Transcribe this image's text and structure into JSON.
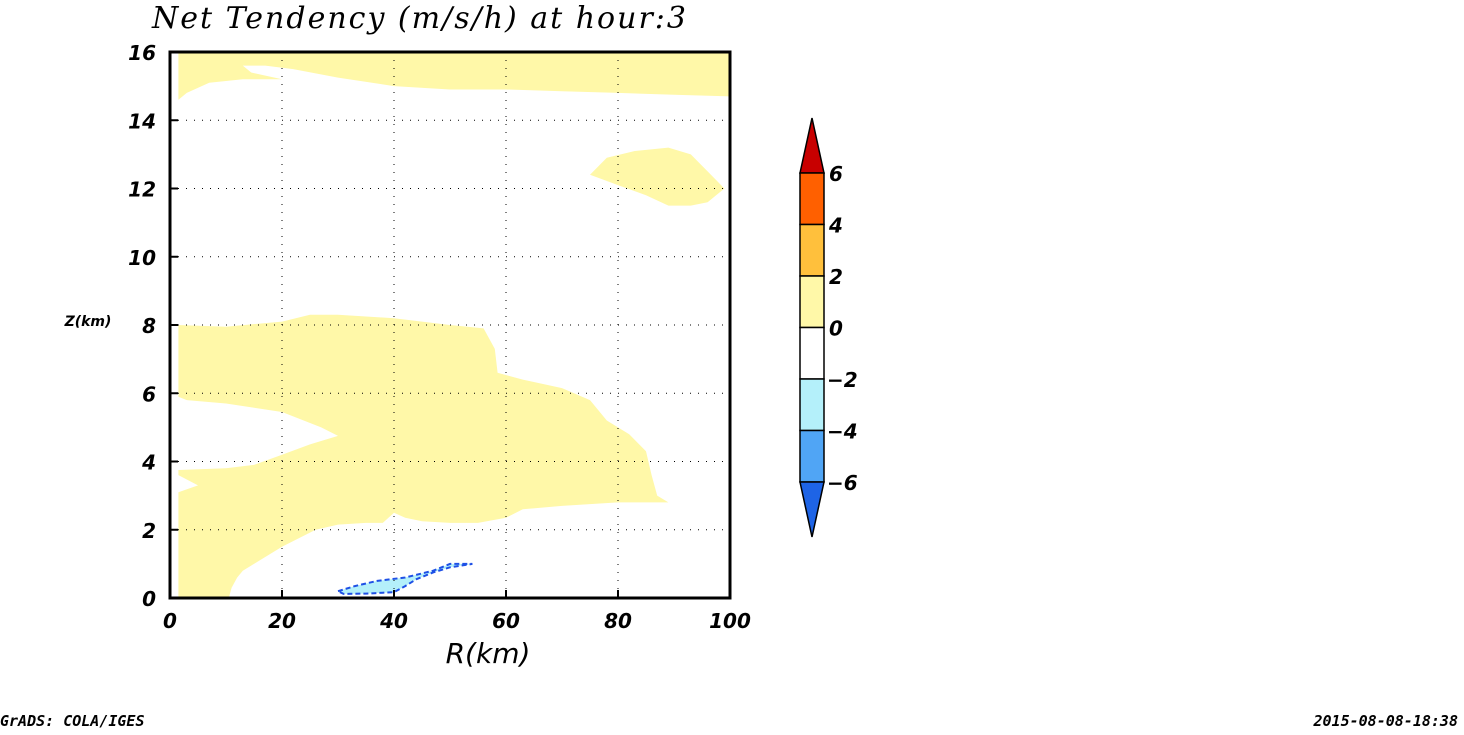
{
  "chart_data": {
    "type": "contour",
    "title": "Net Tendency (m/s/h) at hour:3",
    "xlabel": "R(km)",
    "ylabel": "Z(km)",
    "xlim": [
      0,
      100
    ],
    "ylim": [
      0,
      16
    ],
    "xticks": [
      0,
      20,
      40,
      60,
      80,
      100
    ],
    "yticks": [
      0,
      2,
      4,
      6,
      8,
      10,
      12,
      14,
      16
    ],
    "grid": true,
    "colorbar": {
      "position": "right",
      "levels": [
        -6,
        -4,
        -2,
        0,
        2,
        4,
        6
      ],
      "tick_labels": [
        "6",
        "4",
        "2",
        "0",
        "-2",
        "-4",
        "-6"
      ],
      "colors": [
        "#1e64e6",
        "#50a5f5",
        "#b4f0fa",
        "#ffffff",
        "#fff8a8",
        "#ffc03c",
        "#ff6000",
        "#c80000"
      ]
    },
    "regions": [
      {
        "range": "0 to 2",
        "color": "#fff8a8",
        "polygon": [
          [
            1.5,
            14.6
          ],
          [
            3,
            14.8
          ],
          [
            7,
            15.1
          ],
          [
            13,
            15.2
          ],
          [
            20,
            15.2
          ],
          [
            14.5,
            15.4
          ],
          [
            13,
            15.6
          ],
          [
            17,
            15.6
          ],
          [
            22,
            15.5
          ],
          [
            30,
            15.25
          ],
          [
            40,
            15.0
          ],
          [
            50,
            14.9
          ],
          [
            60,
            14.9
          ],
          [
            70,
            14.85
          ],
          [
            80,
            14.8
          ],
          [
            90,
            14.75
          ],
          [
            100,
            14.7
          ],
          [
            100,
            16
          ],
          [
            1.5,
            16
          ]
        ]
      },
      {
        "range": "0 to 2",
        "color": "#fff8a8",
        "polygon": [
          [
            75,
            12.4
          ],
          [
            78,
            12.9
          ],
          [
            83,
            13.1
          ],
          [
            89,
            13.2
          ],
          [
            93,
            13.0
          ],
          [
            96,
            12.5
          ],
          [
            99,
            12.0
          ],
          [
            96,
            11.6
          ],
          [
            93,
            11.5
          ],
          [
            89,
            11.5
          ],
          [
            85,
            11.8
          ],
          [
            80,
            12.1
          ],
          [
            75,
            12.4
          ]
        ]
      },
      {
        "range": "0 to 2",
        "color": "#fff8a8",
        "polygon": [
          [
            1.5,
            8.0
          ],
          [
            10,
            7.95
          ],
          [
            20,
            8.1
          ],
          [
            25,
            8.3
          ],
          [
            30,
            8.3
          ],
          [
            40,
            8.2
          ],
          [
            50,
            8.0
          ],
          [
            56,
            7.9
          ],
          [
            58,
            7.3
          ],
          [
            58.5,
            6.6
          ],
          [
            63,
            6.4
          ],
          [
            70,
            6.15
          ],
          [
            75,
            5.8
          ],
          [
            78,
            5.2
          ],
          [
            82,
            4.8
          ],
          [
            85,
            4.3
          ],
          [
            86,
            3.6
          ],
          [
            87,
            3.0
          ],
          [
            89,
            2.8
          ],
          [
            80,
            2.8
          ],
          [
            70,
            2.7
          ],
          [
            63,
            2.6
          ],
          [
            60,
            2.35
          ],
          [
            55,
            2.2
          ],
          [
            50,
            2.2
          ],
          [
            45,
            2.25
          ],
          [
            42,
            2.35
          ],
          [
            40,
            2.5
          ],
          [
            38,
            2.2
          ],
          [
            35,
            2.2
          ],
          [
            30,
            2.15
          ],
          [
            26,
            2.0
          ],
          [
            20,
            1.5
          ],
          [
            15,
            1.0
          ],
          [
            13,
            0.8
          ],
          [
            12,
            0.6
          ],
          [
            11,
            0.3
          ],
          [
            10.5,
            0
          ],
          [
            1.5,
            0
          ],
          [
            1.5,
            3.1
          ],
          [
            5,
            3.3
          ],
          [
            1.5,
            3.6
          ],
          [
            1.5,
            3.75
          ],
          [
            10,
            3.8
          ],
          [
            15,
            3.9
          ],
          [
            20,
            4.2
          ],
          [
            25,
            4.5
          ],
          [
            30,
            4.75
          ],
          [
            27,
            5.0
          ],
          [
            20,
            5.45
          ],
          [
            10,
            5.7
          ],
          [
            3,
            5.8
          ],
          [
            1.5,
            5.9
          ]
        ]
      },
      {
        "range": "-4 to -2",
        "color": "#b4f0fa",
        "dashed_outline": "#1e50e6",
        "polygon": [
          [
            30,
            0.2
          ],
          [
            33,
            0.35
          ],
          [
            37,
            0.5
          ],
          [
            42,
            0.6
          ],
          [
            47,
            0.8
          ],
          [
            50,
            1.0
          ],
          [
            54,
            1.0
          ],
          [
            50,
            0.9
          ],
          [
            47,
            0.75
          ],
          [
            44,
            0.55
          ],
          [
            42,
            0.35
          ],
          [
            40,
            0.17
          ],
          [
            35,
            0.13
          ],
          [
            31,
            0.12
          ]
        ]
      }
    ]
  },
  "footer": {
    "left": "GrADS: COLA/IGES",
    "right": "2015-08-08-18:38"
  }
}
